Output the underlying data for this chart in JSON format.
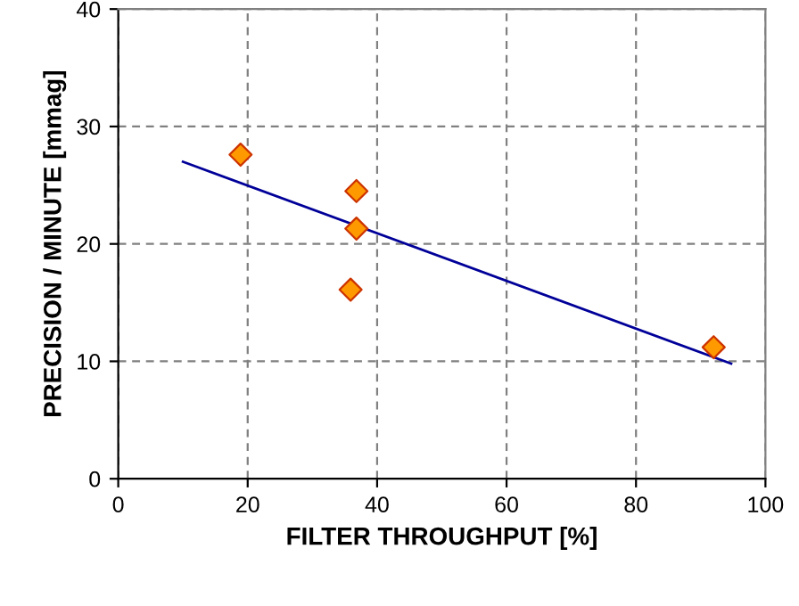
{
  "chart_data": {
    "type": "scatter",
    "xlabel": "FILTER THROUGHPUT [%]",
    "ylabel": "PRECISION / MINUTE [mmag]",
    "series": [
      {
        "color": "#ff9900",
        "marker": "diamond",
        "x": [
          18.9,
          36.8,
          36.8,
          35.9,
          92
        ],
        "values": [
          27.6,
          24.5,
          21.3,
          16.1,
          11.2
        ]
      },
      {
        "type": "line",
        "color": "#000099",
        "x": [
          10,
          94.7
        ],
        "values": [
          27.0,
          9.8
        ]
      }
    ],
    "xlim": [
      0,
      100
    ],
    "xticks": [
      0,
      20,
      40,
      60,
      80,
      100
    ],
    "ylim": [
      0,
      40
    ],
    "yticks": [
      0,
      10,
      20,
      30,
      40
    ],
    "grid": true
  }
}
